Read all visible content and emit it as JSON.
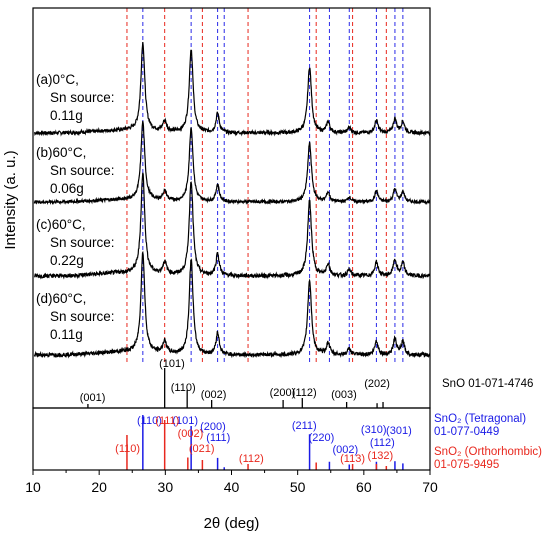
{
  "chart_data": {
    "type": "line",
    "xlabel": "2θ (deg)",
    "ylabel": "Intensity (a. u.)",
    "xlim": [
      10,
      70
    ],
    "xticks": [
      10,
      20,
      30,
      40,
      50,
      60,
      70
    ],
    "samples": [
      {
        "lines": [
          "(a)0°C,",
          "Sn source:",
          "0.11g"
        ]
      },
      {
        "lines": [
          "(b)60°C,",
          "Sn source:",
          "0.06g"
        ]
      },
      {
        "lines": [
          "(c)60°C,",
          "Sn source:",
          "0.22g"
        ]
      },
      {
        "lines": [
          "(d)60°C,",
          "Sn source:",
          "0.11g"
        ]
      }
    ],
    "pattern_peaks": [
      {
        "x": 26.6,
        "h": 1.0,
        "w": 0.35
      },
      {
        "x": 29.9,
        "h": 0.12,
        "w": 0.35
      },
      {
        "x": 33.9,
        "h": 0.95,
        "w": 0.35
      },
      {
        "x": 37.9,
        "h": 0.22,
        "w": 0.3
      },
      {
        "x": 51.8,
        "h": 0.75,
        "w": 0.35
      },
      {
        "x": 54.6,
        "h": 0.12,
        "w": 0.3
      },
      {
        "x": 57.8,
        "h": 0.06,
        "w": 0.3
      },
      {
        "x": 61.9,
        "h": 0.14,
        "w": 0.3
      },
      {
        "x": 64.7,
        "h": 0.16,
        "w": 0.3
      },
      {
        "x": 65.9,
        "h": 0.13,
        "w": 0.3
      }
    ],
    "reference_lines": {
      "blue": [
        26.6,
        33.9,
        37.9,
        38.9,
        51.8,
        54.8,
        57.8,
        61.9,
        64.7,
        65.9
      ],
      "red": [
        24.2,
        29.9,
        35.6,
        42.5,
        52.8,
        58.3,
        63.4
      ]
    },
    "references": [
      {
        "label": "SnO 01-071-4746",
        "color": "#000000",
        "sticks": [
          {
            "x": 18.3,
            "h": 0.1
          },
          {
            "x": 29.9,
            "h": 1.0
          },
          {
            "x": 33.3,
            "h": 0.45
          },
          {
            "x": 37.0,
            "h": 0.2
          },
          {
            "x": 47.8,
            "h": 0.2
          },
          {
            "x": 50.7,
            "h": 0.25
          },
          {
            "x": 57.4,
            "h": 0.15
          },
          {
            "x": 62.0,
            "h": 0.12
          },
          {
            "x": 62.9,
            "h": 0.15
          }
        ],
        "hkl": [
          {
            "text": "(101)",
            "x": 31.0
          },
          {
            "text": "(001)",
            "x": 19.0
          },
          {
            "text": "(110)",
            "x": 32.7
          },
          {
            "text": "(002)",
            "x": 37.3
          },
          {
            "text": "(200)",
            "x": 47.7
          },
          {
            "text": "(112)",
            "x": 51.0
          },
          {
            "text": "(003)",
            "x": 57.0
          },
          {
            "text": "(202)",
            "x": 62.0
          }
        ]
      },
      {
        "label": [
          "SnO₂ (Tetragonal)",
          "01-077-0449"
        ],
        "color": "#1b1be6",
        "sticks": [
          {
            "x": 26.6,
            "h": 1.0
          },
          {
            "x": 33.9,
            "h": 0.8
          },
          {
            "x": 37.9,
            "h": 0.22
          },
          {
            "x": 38.9,
            "h": 0.05
          },
          {
            "x": 51.8,
            "h": 0.65
          },
          {
            "x": 54.8,
            "h": 0.15
          },
          {
            "x": 57.8,
            "h": 0.1
          },
          {
            "x": 61.9,
            "h": 0.15
          },
          {
            "x": 64.7,
            "h": 0.16
          },
          {
            "x": 65.9,
            "h": 0.12
          }
        ],
        "hkl": [
          {
            "text": "(110)",
            "x": 27.6
          },
          {
            "text": "(101)",
            "x": 33.0
          },
          {
            "text": "(200)",
            "x": 37.2
          },
          {
            "text": "(111)",
            "x": 38.0
          },
          {
            "text": "(211)",
            "x": 51.0
          },
          {
            "text": "(220)",
            "x": 53.6
          },
          {
            "text": "(002)",
            "x": 57.2
          },
          {
            "text": "(310)",
            "x": 61.5
          },
          {
            "text": "(112)",
            "x": 62.8
          },
          {
            "text": "(301)",
            "x": 65.3
          }
        ]
      },
      {
        "label": [
          "SnO₂ (Orthorhombic)",
          "01-075-9495"
        ],
        "color": "#e8281e",
        "sticks": [
          {
            "x": 24.2,
            "h": 0.7
          },
          {
            "x": 29.9,
            "h": 1.0
          },
          {
            "x": 33.4,
            "h": 0.25
          },
          {
            "x": 35.6,
            "h": 0.2
          },
          {
            "x": 42.5,
            "h": 0.12
          },
          {
            "x": 52.8,
            "h": 0.15
          },
          {
            "x": 58.3,
            "h": 0.12
          },
          {
            "x": 61.9,
            "h": 0.12
          },
          {
            "x": 63.4,
            "h": 0.08
          }
        ],
        "hkl": [
          {
            "text": "(110)",
            "x": 24.3
          },
          {
            "text": "(111)",
            "x": 30.3
          },
          {
            "text": "(002)",
            "x": 33.8
          },
          {
            "text": "(021)",
            "x": 35.5
          },
          {
            "text": "(112)",
            "x": 43.0
          },
          {
            "text": "(113)",
            "x": 58.3
          },
          {
            "text": "(132)",
            "x": 62.5
          }
        ]
      }
    ]
  }
}
